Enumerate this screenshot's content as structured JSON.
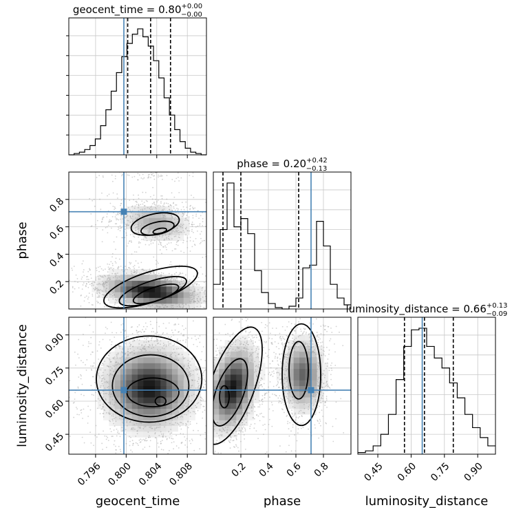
{
  "chart_data": {
    "type": "corner",
    "parameters": [
      "geocent_time",
      "phase",
      "luminosity_distance"
    ],
    "truths": {
      "geocent_time": 0.7997,
      "phase": 0.71,
      "luminosity_distance": 0.65
    },
    "colors": {
      "truth": "#4682b4",
      "hist": "#000000",
      "grid": "#c8c8c8",
      "scatter": "#9a9a9a"
    },
    "grid": true,
    "axes": {
      "geocent_time": {
        "range": [
          0.7925,
          0.8105
        ],
        "ticks": [
          0.796,
          0.8,
          0.804,
          0.808
        ],
        "tick_labels": [
          "0.796",
          "0.800",
          "0.804",
          "0.808"
        ]
      },
      "phase": {
        "range": [
          0.0,
          1.0
        ],
        "ticks": [
          0.2,
          0.4,
          0.6,
          0.8
        ],
        "tick_labels": [
          "0.2",
          "0.4",
          "0.6",
          "0.8"
        ]
      },
      "luminosity_distance": {
        "range": [
          0.36,
          0.98
        ],
        "ticks": [
          0.45,
          0.6,
          0.75,
          0.9
        ],
        "tick_labels": [
          "0.45",
          "0.60",
          "0.75",
          "0.90"
        ]
      }
    },
    "diagonal": [
      {
        "param": "geocent_time",
        "title": {
          "name": "geocent_time",
          "value": "0.80",
          "upper": "+0.00",
          "lower": "−0.00"
        },
        "quantiles": [
          0.8002,
          0.8032,
          0.8058
        ],
        "bins": [
          0.7925,
          0.8105
        ],
        "counts": [
          0,
          1,
          2,
          4,
          7,
          12,
          22,
          34,
          48,
          62,
          74,
          84,
          91,
          95,
          89,
          82,
          71,
          58,
          43,
          30,
          19,
          10,
          5,
          2,
          1,
          0
        ]
      },
      {
        "param": "phase",
        "title": {
          "name": "phase",
          "value": "0.20",
          "upper": "+0.42",
          "lower": "−0.13"
        },
        "quantiles": [
          0.07,
          0.2,
          0.62
        ],
        "bins": [
          0.0,
          1.0
        ],
        "counts": [
          18,
          58,
          92,
          60,
          66,
          55,
          28,
          12,
          4,
          1,
          0,
          2,
          8,
          30,
          32,
          64,
          46,
          18,
          8,
          3
        ]
      },
      {
        "param": "luminosity_distance",
        "title": {
          "name": "luminosity_distance",
          "value": "0.66",
          "upper": "+0.13",
          "lower": "−0.09"
        },
        "quantiles": [
          0.57,
          0.66,
          0.79
        ],
        "bins": [
          0.36,
          0.98
        ],
        "counts": [
          1,
          2,
          5,
          12,
          24,
          45,
          65,
          75,
          76,
          65,
          58,
          52,
          43,
          34,
          24,
          16,
          10,
          5
        ]
      }
    ],
    "pairs": [
      {
        "x": "geocent_time",
        "y": "phase",
        "clusters": [
          {
            "cx": 0.8039,
            "cy": 0.63,
            "sx": 0.0027,
            "sy": 0.08,
            "n": 700,
            "tilt": -0.4
          },
          {
            "cx": 0.8032,
            "cy": 0.13,
            "sx": 0.0035,
            "sy": 0.07,
            "n": 1500,
            "tilt": -0.55
          },
          {
            "cx": 0.8028,
            "cy": 0.97,
            "sx": 0.003,
            "sy": 0.015,
            "n": 60,
            "tilt": 0
          }
        ],
        "contours": [
          {
            "cx": 0.8038,
            "cy": 0.62,
            "rx": 0.0032,
            "ry": 0.075,
            "rot": -12
          },
          {
            "cx": 0.8041,
            "cy": 0.59,
            "rx": 0.0022,
            "ry": 0.045,
            "rot": -12
          },
          {
            "cx": 0.8044,
            "cy": 0.57,
            "rx": 0.0009,
            "ry": 0.018,
            "rot": -12
          },
          {
            "cx": 0.8032,
            "cy": 0.16,
            "rx": 0.0064,
            "ry": 0.11,
            "rot": -18
          },
          {
            "cx": 0.8035,
            "cy": 0.13,
            "rx": 0.0046,
            "ry": 0.075,
            "rot": -18
          },
          {
            "cx": 0.8039,
            "cy": 0.11,
            "rx": 0.0031,
            "ry": 0.05,
            "rot": -18
          }
        ]
      },
      {
        "x": "geocent_time",
        "y": "luminosity_distance",
        "clusters": [
          {
            "cx": 0.803,
            "cy": 0.66,
            "sx": 0.0034,
            "sy": 0.11,
            "n": 2000,
            "tilt": 0
          }
        ],
        "contours": [
          {
            "cx": 0.803,
            "cy": 0.7,
            "rx": 0.0069,
            "ry": 0.195,
            "rot": 0
          },
          {
            "cx": 0.8032,
            "cy": 0.67,
            "rx": 0.005,
            "ry": 0.14,
            "rot": 0
          },
          {
            "cx": 0.8035,
            "cy": 0.64,
            "rx": 0.0034,
            "ry": 0.065,
            "rot": 0
          },
          {
            "cx": 0.8045,
            "cy": 0.6,
            "rx": 0.0007,
            "ry": 0.02,
            "rot": 0
          }
        ]
      },
      {
        "x": "phase",
        "y": "luminosity_distance",
        "clusters": [
          {
            "cx": 0.14,
            "cy": 0.66,
            "sx": 0.1,
            "sy": 0.11,
            "n": 1200,
            "tilt": 0.5
          },
          {
            "cx": 0.65,
            "cy": 0.72,
            "sx": 0.09,
            "sy": 0.1,
            "n": 900,
            "tilt": 0
          }
        ],
        "contours": [
          {
            "cx": 0.14,
            "cy": 0.67,
            "rx": 0.16,
            "ry": 0.28,
            "rot": 20
          },
          {
            "cx": 0.12,
            "cy": 0.64,
            "rx": 0.1,
            "ry": 0.16,
            "rot": 20
          },
          {
            "cx": 0.08,
            "cy": 0.62,
            "rx": 0.035,
            "ry": 0.05,
            "rot": 0
          },
          {
            "cx": 0.64,
            "cy": 0.72,
            "rx": 0.14,
            "ry": 0.23,
            "rot": 0
          },
          {
            "cx": 0.62,
            "cy": 0.74,
            "rx": 0.07,
            "ry": 0.13,
            "rot": 0
          }
        ]
      }
    ]
  }
}
